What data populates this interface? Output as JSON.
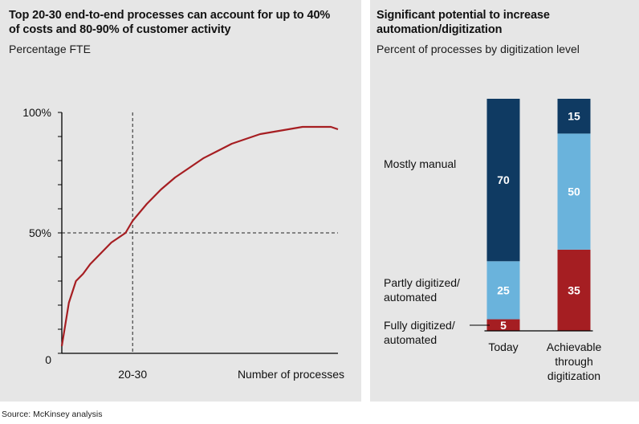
{
  "colors": {
    "panel_bg": "#e6e6e6",
    "curve": "#a61e22",
    "mostly_manual": "#0f3a62",
    "partly_digitized": "#6ab3dc",
    "fully_digitized": "#a51e22"
  },
  "left_panel": {
    "title_lines": [
      "Top 20-30 end-to-end processes can account for up to 40%",
      "of costs and 80-90% of customer activity"
    ],
    "subtitle": "Percentage FTE"
  },
  "right_panel": {
    "title_lines": [
      "Significant potential to increase",
      "automation/digitization"
    ],
    "subtitle": "Percent of processes by digitization level"
  },
  "chart_data": [
    {
      "type": "line",
      "title": "Top 20-30 end-to-end processes can account for up to 40% of costs and 80-90% of customer activity",
      "ylabel": "Percentage FTE",
      "xlabel": "Number of processes",
      "ylim": [
        0,
        100
      ],
      "y_tick_labels": [
        "0",
        "50%",
        "100%"
      ],
      "x_tick_labels": [
        "20-30"
      ],
      "x_label_value": 20,
      "x_label_text": "20-30",
      "x": [
        0,
        2,
        4,
        6,
        8,
        10,
        12,
        14,
        16,
        18,
        20,
        24,
        28,
        32,
        36,
        40,
        44,
        48,
        52,
        56,
        60,
        64,
        68,
        72,
        76,
        78
      ],
      "y": [
        3,
        21,
        30,
        33,
        37,
        40,
        43,
        46,
        48,
        50,
        55,
        62,
        68,
        73,
        77,
        81,
        84,
        87,
        89,
        91,
        92,
        93,
        94,
        94,
        94,
        93
      ],
      "xlim": [
        0,
        78
      ],
      "reference_lines": {
        "x": 20,
        "y": 50
      }
    },
    {
      "type": "bar",
      "stacked": true,
      "title": "Significant potential to increase automation/digitization",
      "ylabel": "Percent of processes by digitization level",
      "categories": [
        "Today",
        "Achievable through digitization"
      ],
      "category_label_lines": [
        [
          "Today"
        ],
        [
          "Achievable",
          "through",
          "digitization"
        ]
      ],
      "series": [
        {
          "name": "Fully digitized/ automated",
          "label_lines": [
            "Fully digitized/",
            "automated"
          ],
          "values": [
            5,
            35
          ]
        },
        {
          "name": "Partly digitized/ automated",
          "label_lines": [
            "Partly digitized/",
            "automated"
          ],
          "values": [
            25,
            50
          ]
        },
        {
          "name": "Mostly manual",
          "label_lines": [
            "Mostly manual"
          ],
          "values": [
            70,
            15
          ]
        }
      ],
      "ylim": [
        0,
        100
      ]
    }
  ],
  "source": "Source: McKinsey analysis"
}
